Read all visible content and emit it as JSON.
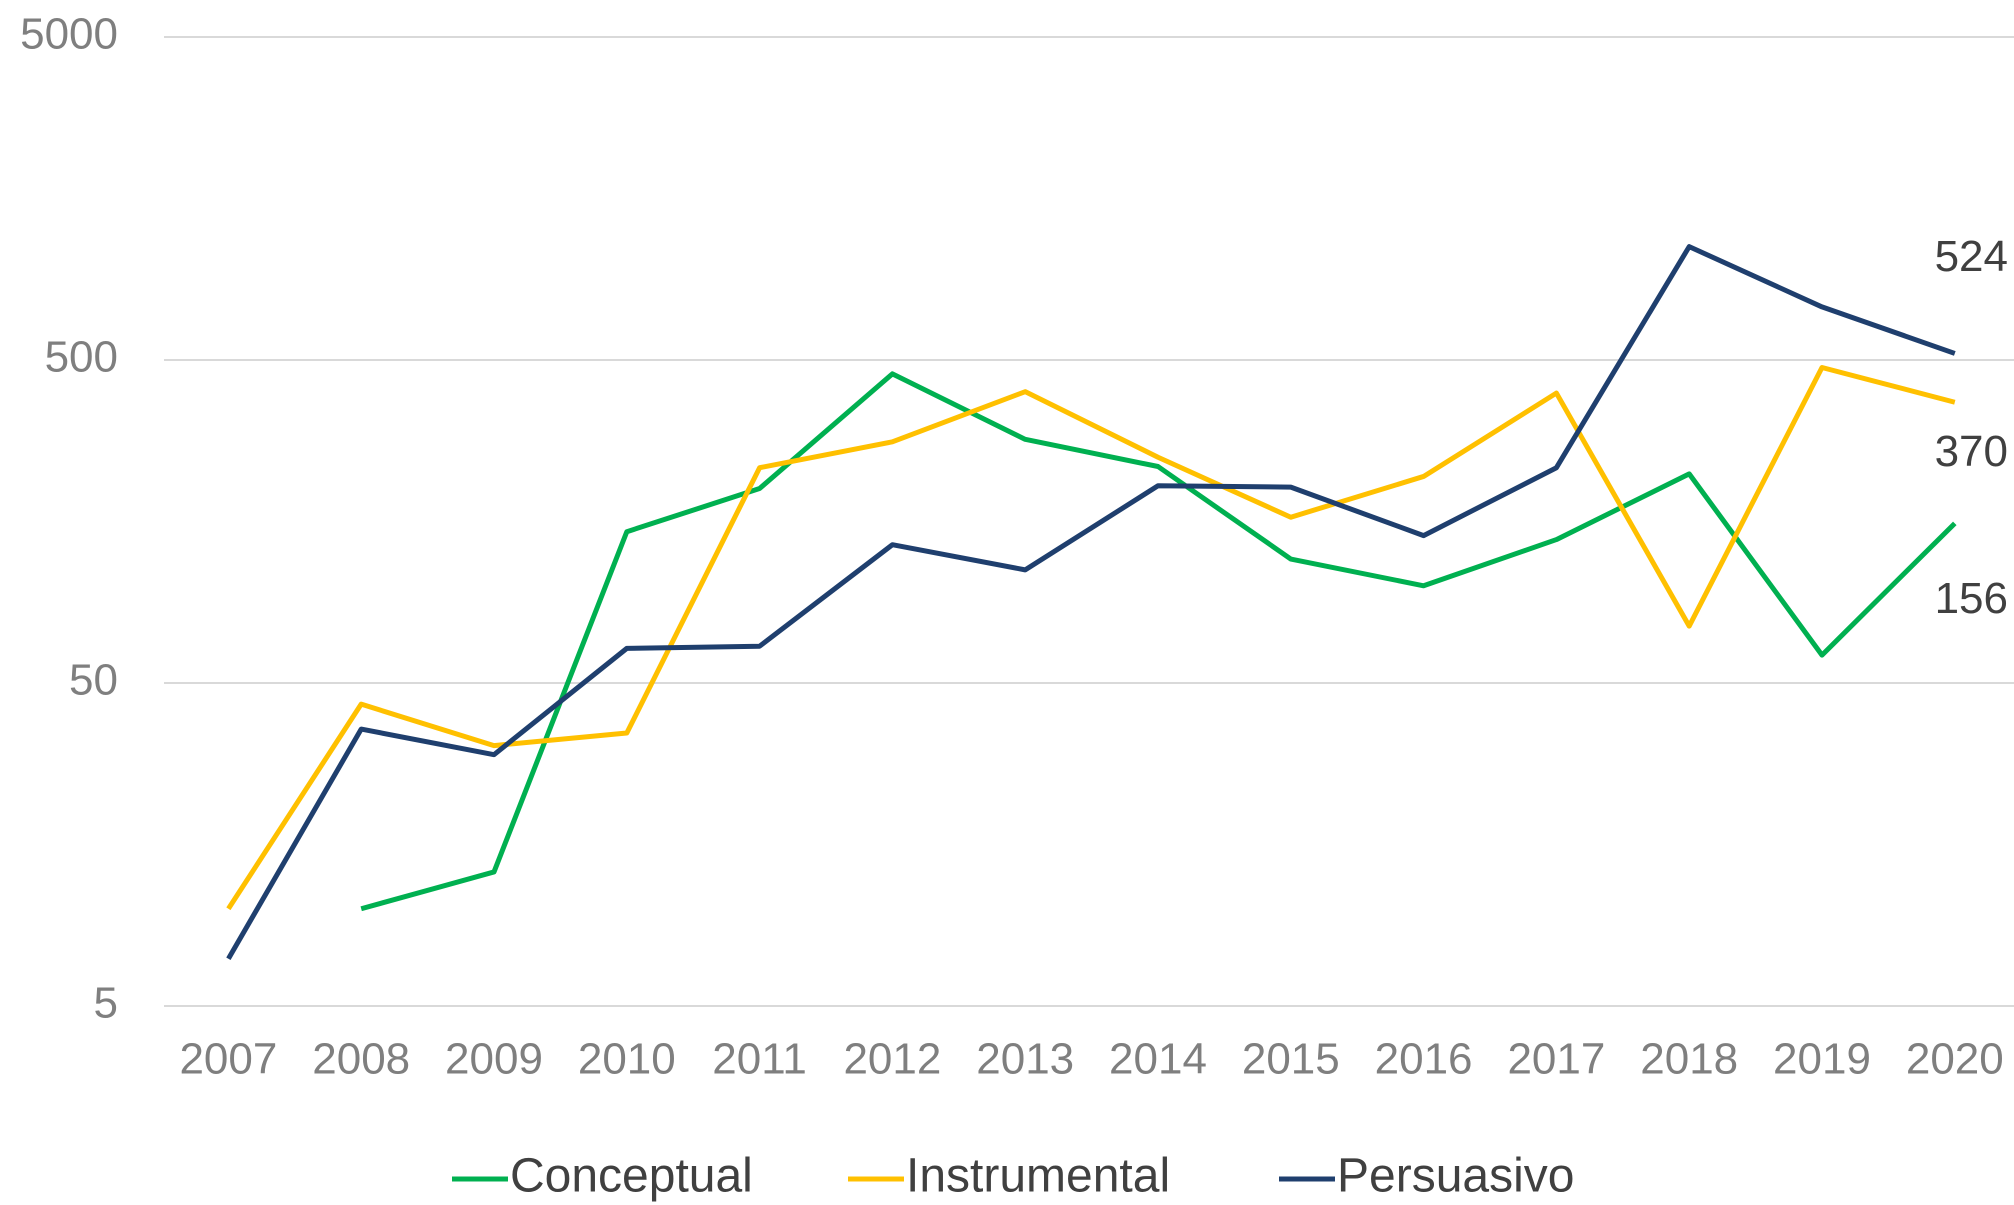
{
  "chart_data": {
    "type": "line",
    "categories": [
      "2007",
      "2008",
      "2009",
      "2010",
      "2011",
      "2012",
      "2013",
      "2014",
      "2015",
      "2016",
      "2017",
      "2018",
      "2019",
      "2020"
    ],
    "series": [
      {
        "name": "Conceptual",
        "color": "#00b050",
        "values": [
          null,
          10,
          13,
          147,
          200,
          453,
          284,
          234,
          121,
          100,
          139,
          222,
          61,
          156
        ]
      },
      {
        "name": "Instrumental",
        "color": "#ffc000",
        "values": [
          10,
          43,
          32,
          35,
          232,
          279,
          399,
          250,
          163,
          218,
          395,
          75,
          474,
          370
        ]
      },
      {
        "name": "Persuasivo",
        "color": "#1f3f6e",
        "values": [
          7,
          36,
          30,
          64,
          65,
          134,
          112,
          204,
          202,
          143,
          232,
          1122,
          730,
          524
        ]
      }
    ],
    "ylim": [
      5,
      5000
    ],
    "yticks": [
      5,
      50,
      500,
      5000
    ],
    "log_scale": true,
    "grid": true,
    "data_labels": "last",
    "legend": "bottom"
  }
}
